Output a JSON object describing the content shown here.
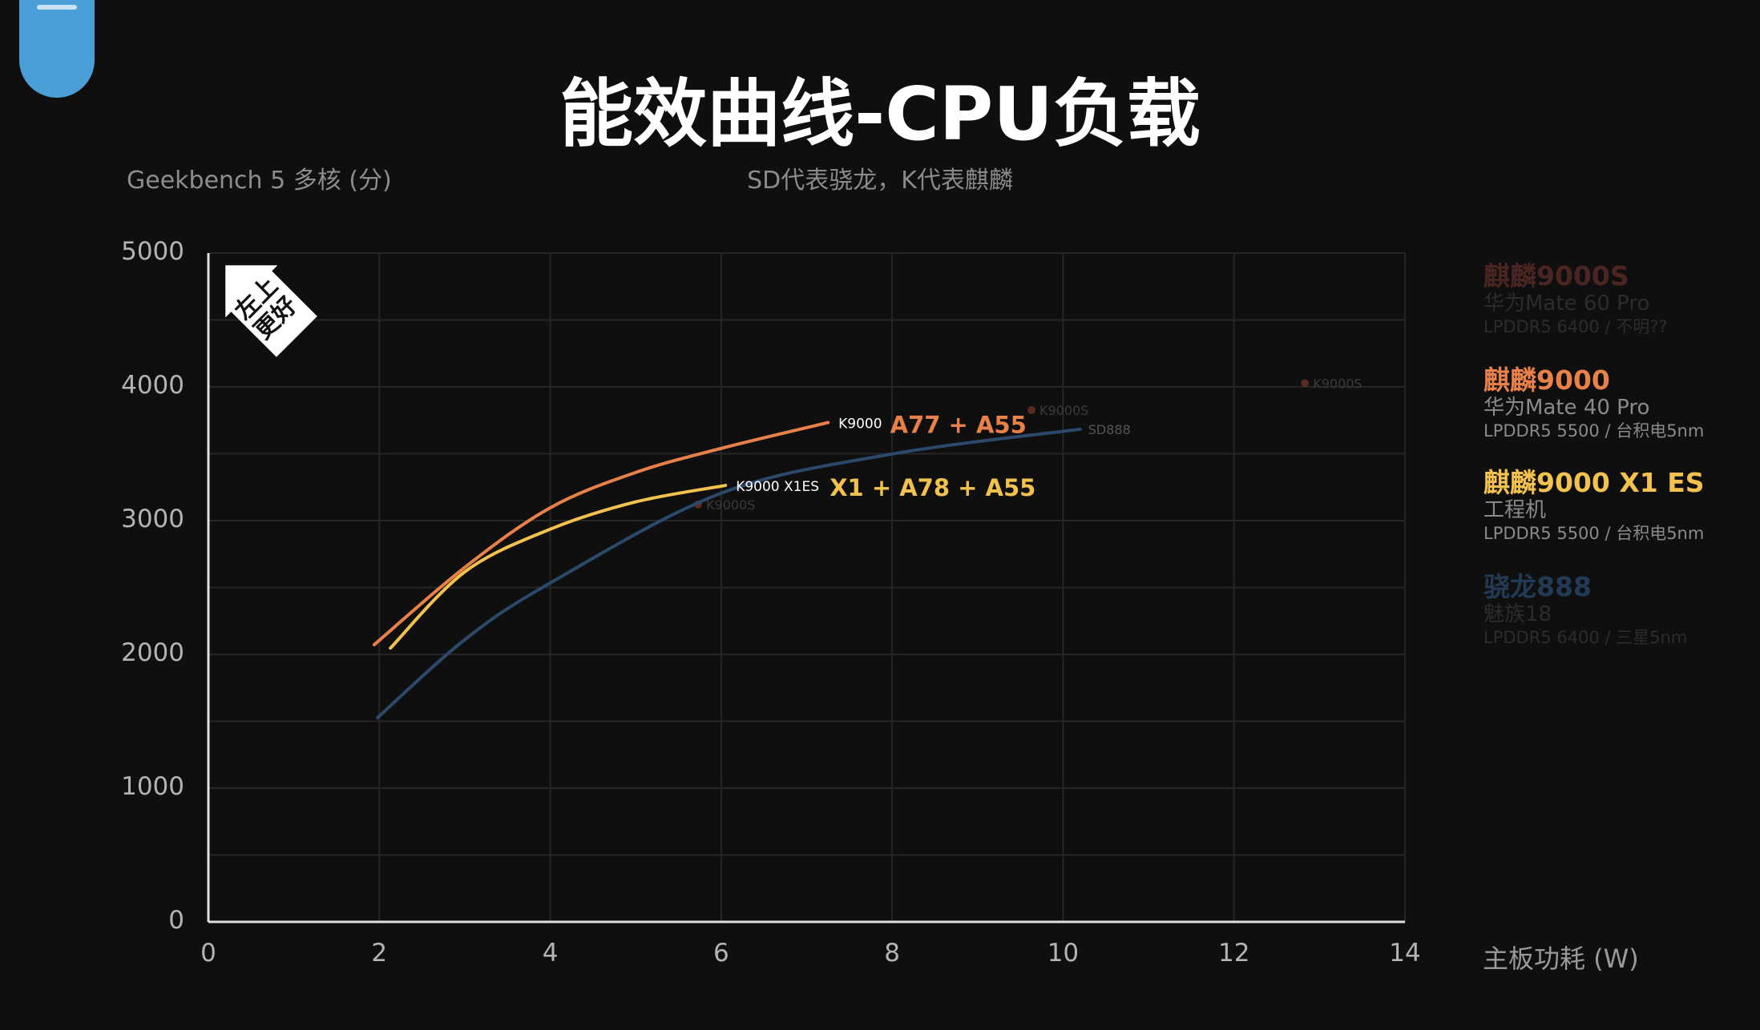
{
  "chart_data": {
    "type": "line",
    "title": "能效曲线-CPU负载",
    "subtitle": "SD代表骁龙，K代表麒麟",
    "xlabel": "主板功耗 (W)",
    "ylabel": "Geekbench 5 多核 (分)",
    "xlim": [
      0,
      14
    ],
    "ylim": [
      0,
      5000
    ],
    "xticks": [
      "0",
      "2",
      "4",
      "6",
      "8",
      "10",
      "12",
      "14"
    ],
    "yticks": [
      "0",
      "1000",
      "2000",
      "3000",
      "4000",
      "5000"
    ],
    "grid": true,
    "badge": "左上更好",
    "series": [
      {
        "name": "K9000",
        "annotation": "A77 + A55",
        "color": "#e8804a",
        "x": [
          1.94,
          3,
          4,
          5,
          6,
          7.25
        ],
        "y": [
          2072,
          2650,
          3096,
          3360,
          3540,
          3733
        ]
      },
      {
        "name": "K9000 X1ES",
        "annotation": "X1 + A78 + A55",
        "color": "#f2c14e",
        "x": [
          2.13,
          3,
          4,
          5,
          6.05
        ],
        "y": [
          2047,
          2617,
          2936,
          3140,
          3263
        ]
      },
      {
        "name": "SD888",
        "color": "#2b4a6b",
        "x": [
          1.98,
          3,
          4,
          6,
          8,
          10.2
        ],
        "y": [
          1527,
          2110,
          2534,
          3205,
          3498,
          3683
        ]
      }
    ],
    "points": [
      {
        "name": "K9000S",
        "x": 5.73,
        "y": 3121,
        "color": "#5a2a24"
      },
      {
        "name": "K9000S",
        "x": 9.63,
        "y": 3826,
        "color": "#5a2a24"
      },
      {
        "name": "K9000S",
        "x": 12.83,
        "y": 4027,
        "color": "#5a2a24"
      }
    ]
  },
  "legend": [
    {
      "title": "麒麟9000S",
      "sub": "华为Mate 60 Pro",
      "spec": "LPDDR5 6400 / 不明??",
      "title_color": "#4a2522",
      "text_color": "#2c2c2c"
    },
    {
      "title": "麒麟9000",
      "sub": "华为Mate 40 Pro",
      "spec": "LPDDR5 5500 / 台积电5nm",
      "title_color": "#e8804a",
      "text_color": "#8a8a8a"
    },
    {
      "title": "麒麟9000 X1 ES",
      "sub": "工程机",
      "spec": "LPDDR5 5500 / 台积电5nm",
      "title_color": "#f2c14e",
      "text_color": "#8a8a8a"
    },
    {
      "title": "骁龙888",
      "sub": "魅族18",
      "spec": "LPDDR5 6400 / 三星5nm",
      "title_color": "#233a55",
      "text_color": "#2c2c2c"
    }
  ]
}
